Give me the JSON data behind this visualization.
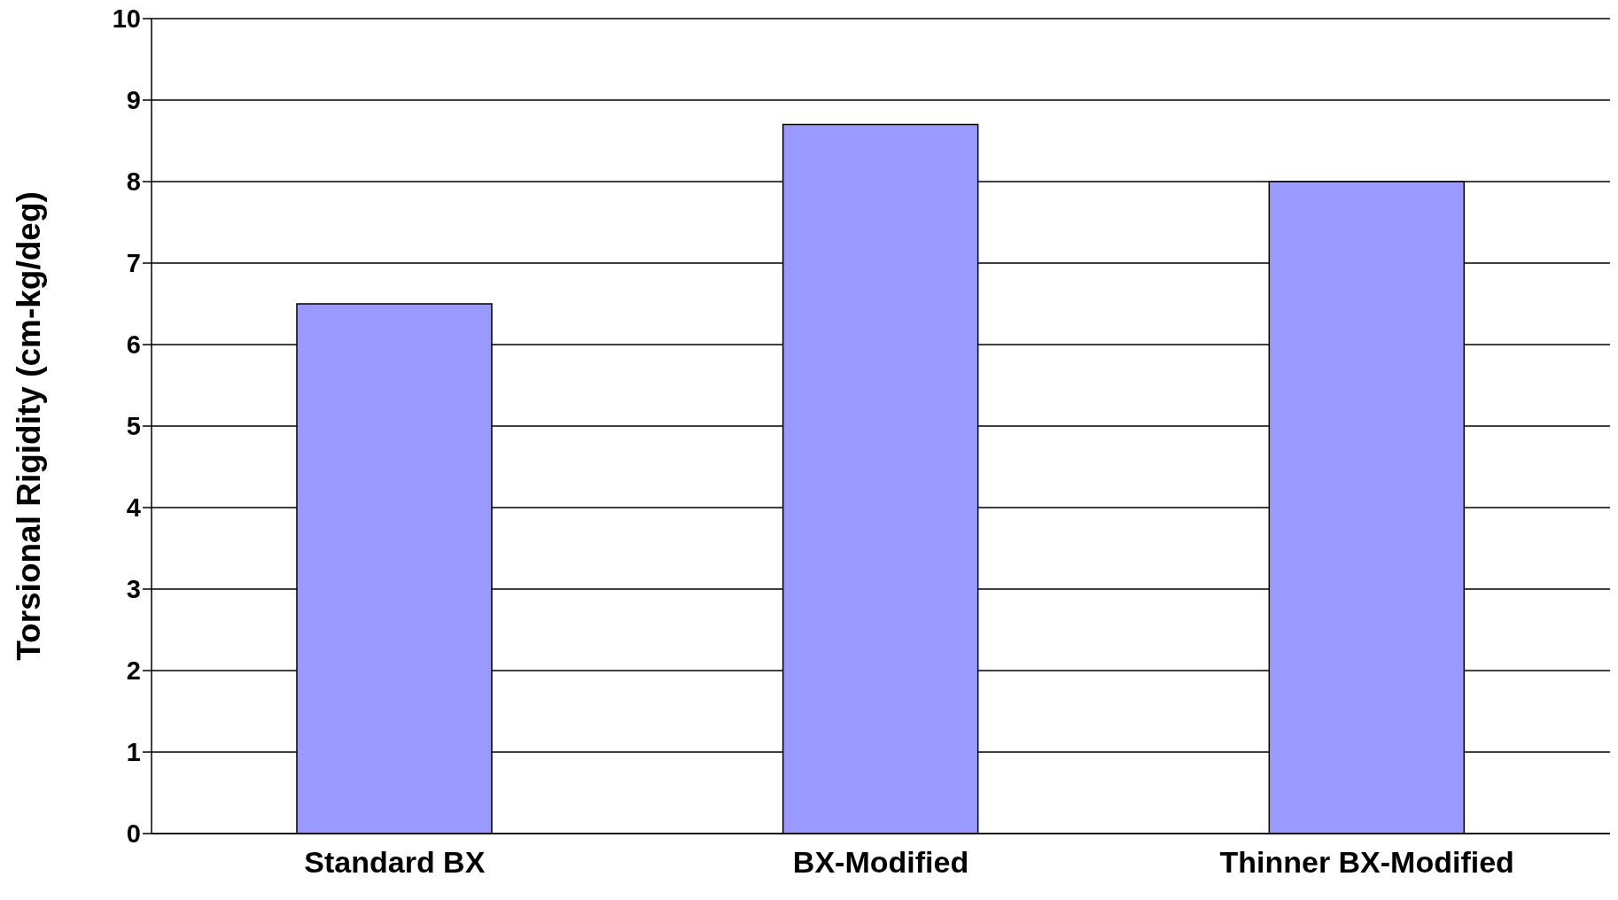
{
  "chart_data": {
    "type": "bar",
    "ylabel": "Torsional Rigidity (cm-kg/deg)",
    "categories": [
      "Standard BX",
      "BX-Modified",
      "Thinner BX-Modified"
    ],
    "values": [
      6.5,
      8.7,
      8.0
    ],
    "color": "#9999ff",
    "ylim": [
      0,
      10
    ],
    "yticks": [
      0,
      1,
      2,
      3,
      4,
      5,
      6,
      7,
      8,
      9,
      10
    ],
    "grid": "y"
  }
}
